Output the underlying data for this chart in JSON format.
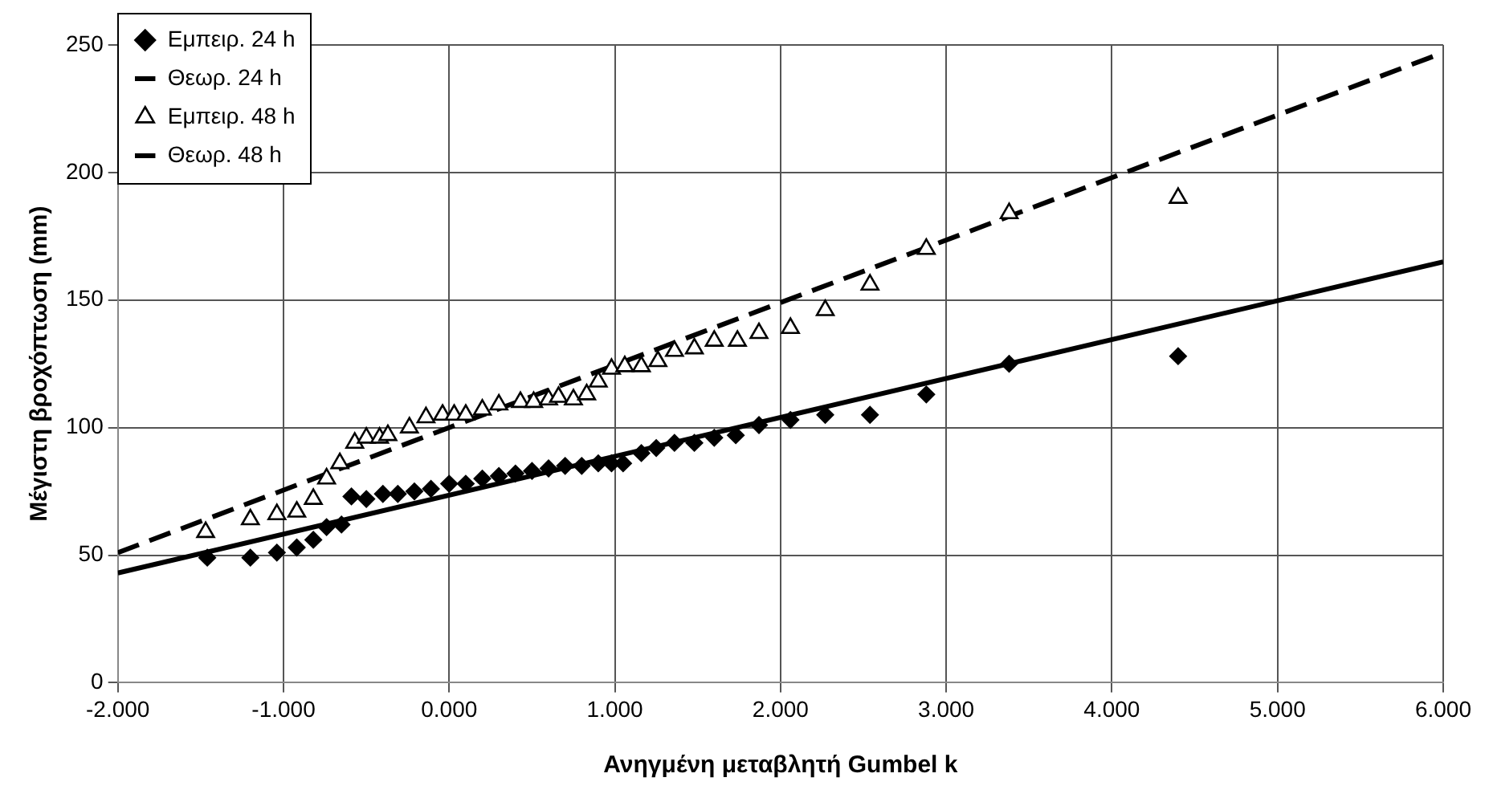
{
  "chart_data": {
    "type": "scatter",
    "xlabel": "Ανηγμένη μεταβλητή Gumbel k",
    "ylabel": "Μέγιστη βροχόπτωση (mm)",
    "xlim": [
      -2,
      6
    ],
    "xticks": [
      {
        "value": -2,
        "label": "-2.000"
      },
      {
        "value": -1,
        "label": "-1.000"
      },
      {
        "value": 0,
        "label": "0.000"
      },
      {
        "value": 1,
        "label": "1.000"
      },
      {
        "value": 2,
        "label": "2.000"
      },
      {
        "value": 3,
        "label": "3.000"
      },
      {
        "value": 4,
        "label": "4.000"
      },
      {
        "value": 5,
        "label": "5.000"
      },
      {
        "value": 6,
        "label": "6.000"
      }
    ],
    "ylim": [
      0,
      250
    ],
    "yticks": [
      0,
      50,
      100,
      150,
      200,
      250
    ],
    "grid": true,
    "legend": "top left",
    "series": [
      {
        "name": "Εμπειρ. 24 h",
        "type": "scatter",
        "marker": "diamond",
        "color": "#000000",
        "x": [
          -1.46,
          -1.2,
          -1.04,
          -0.92,
          -0.82,
          -0.74,
          -0.65,
          -0.59,
          -0.5,
          -0.4,
          -0.31,
          -0.21,
          -0.11,
          0,
          0.1,
          0.2,
          0.3,
          0.4,
          0.5,
          0.6,
          0.7,
          0.8,
          0.9,
          0.98,
          1.05,
          1.16,
          1.25,
          1.36,
          1.48,
          1.6,
          1.73,
          1.87,
          2.06,
          2.27,
          2.54,
          2.88,
          3.38,
          4.4
        ],
        "values": [
          49,
          49,
          51,
          53,
          56,
          61,
          62,
          73,
          72,
          74,
          74,
          75,
          76,
          78,
          78,
          80,
          81,
          82,
          83,
          84,
          85,
          85,
          86,
          86,
          86,
          90,
          92,
          94,
          94,
          96,
          97,
          101,
          103,
          105,
          105,
          113,
          125,
          128
        ]
      },
      {
        "name": "Θεωρ. 24 h",
        "type": "line",
        "marker": "none",
        "line_style": "solid",
        "color": "#000000",
        "x": [
          -2,
          6
        ],
        "values": [
          43,
          165
        ]
      },
      {
        "name": "Εμπειρ. 48 h",
        "type": "scatter",
        "marker": "triangle",
        "color": "#000000",
        "x": [
          -1.47,
          -1.2,
          -1.04,
          -0.92,
          -0.82,
          -0.74,
          -0.66,
          -0.57,
          -0.5,
          -0.42,
          -0.37,
          -0.24,
          -0.14,
          -0.04,
          0.03,
          0.1,
          0.2,
          0.3,
          0.43,
          0.51,
          0.6,
          0.66,
          0.75,
          0.83,
          0.9,
          0.98,
          1.06,
          1.16,
          1.26,
          1.36,
          1.48,
          1.6,
          1.74,
          1.87,
          2.06,
          2.27,
          2.54,
          2.88,
          3.38,
          4.4
        ],
        "values": [
          59,
          64,
          66,
          67,
          72,
          80,
          86,
          94,
          96,
          96,
          97,
          100,
          104,
          105,
          105,
          105,
          107,
          109,
          110,
          110,
          111,
          112,
          111,
          113,
          118,
          123,
          124,
          124,
          126,
          130,
          131,
          134,
          134,
          137,
          139,
          146,
          156,
          170,
          184,
          190
        ]
      },
      {
        "name": "Θεωρ. 48 h",
        "type": "line",
        "marker": "none",
        "line_style": "dashed",
        "color": "#000000",
        "x": [
          -2,
          6
        ],
        "values": [
          51,
          247
        ]
      }
    ]
  }
}
